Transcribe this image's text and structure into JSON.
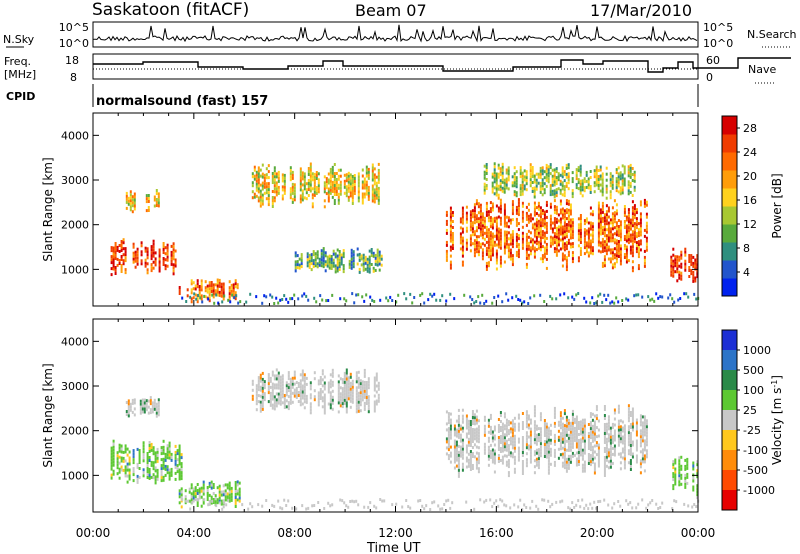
{
  "header": {
    "station": "Saskatoon (fitACF)",
    "beam": "Beam 07",
    "date": "17/Mar/2010"
  },
  "nsky_panel": {
    "left_label": "N.Sky",
    "right_label": "N.Search",
    "yticks": [
      "10^5",
      "10^0"
    ],
    "right_yticks": [
      "10^5",
      "10^0"
    ]
  },
  "freq_panel": {
    "left_label_1": "Freq.",
    "left_label_2": "[MHz]",
    "yticks": [
      "18",
      "8"
    ],
    "right_label": "Nave",
    "right_yticks": [
      "60",
      "0"
    ]
  },
  "cpid": {
    "label": "CPID",
    "value": "normalsound (fast) 157"
  },
  "chart_data": [
    {
      "type": "heatmap",
      "title": "",
      "quantity": "Power",
      "xlabel": "",
      "ylabel": "Slant Range [km]",
      "xlim": [
        0,
        24
      ],
      "ylim": [
        180,
        4500
      ],
      "yticks": [
        "1000",
        "2000",
        "3000",
        "4000"
      ],
      "colorbar": {
        "label": "Power [dB]",
        "ticks": [
          "4",
          "8",
          "12",
          "16",
          "20",
          "24",
          "28"
        ],
        "range": [
          0,
          30
        ],
        "colors": [
          "#0022ee",
          "#2255cc",
          "#2f8f7f",
          "#58aa3c",
          "#a8c832",
          "#ffd21e",
          "#ff9d0a",
          "#ff6a00",
          "#f03c00",
          "#d60000"
        ]
      },
      "regions": [
        {
          "t0": 0.7,
          "t1": 3.3,
          "r0": 900,
          "r1": 1700,
          "level": 8
        },
        {
          "t0": 1.3,
          "t1": 2.6,
          "r0": 2300,
          "r1": 2800,
          "level": 5
        },
        {
          "t0": 3.4,
          "t1": 5.8,
          "r0": 300,
          "r1": 800,
          "level": 7
        },
        {
          "t0": 6.3,
          "t1": 11.3,
          "r0": 2400,
          "r1": 3400,
          "level": 5
        },
        {
          "t0": 8.0,
          "t1": 11.5,
          "r0": 900,
          "r1": 1500,
          "level": 3
        },
        {
          "t0": 14.0,
          "t1": 22.0,
          "r0": 1000,
          "r1": 2600,
          "level": 7
        },
        {
          "t0": 15.5,
          "t1": 21.5,
          "r0": 2600,
          "r1": 3400,
          "level": 4
        },
        {
          "t0": 22.9,
          "t1": 24.0,
          "r0": 700,
          "r1": 1500,
          "level": 8
        }
      ]
    },
    {
      "type": "heatmap",
      "title": "",
      "quantity": "Velocity",
      "xlabel": "Time UT",
      "ylabel": "Slant Range [km]",
      "xlim": [
        0,
        24
      ],
      "ylim": [
        180,
        4500
      ],
      "xticks": [
        "00:00",
        "04:00",
        "08:00",
        "12:00",
        "16:00",
        "20:00",
        "00:00"
      ],
      "yticks": [
        "1000",
        "2000",
        "3000",
        "4000"
      ],
      "colorbar": {
        "label": "Velocity [m s^-1]",
        "ticks": [
          "1000",
          "500",
          "100",
          "25",
          "-25",
          "-100",
          "-500",
          "-1000"
        ],
        "range": [
          -1000,
          1000
        ],
        "colors": [
          "#1c2fd4",
          "#2c74c8",
          "#2a8a48",
          "#5cc832",
          "#c8c8c8",
          "#ffc81e",
          "#ff8c0a",
          "#ff4a00",
          "#e60000"
        ]
      },
      "regions": [
        {
          "t0": 0.7,
          "t1": 3.5,
          "r0": 800,
          "r1": 1800,
          "level": "+100"
        },
        {
          "t0": 1.3,
          "t1": 2.6,
          "r0": 2300,
          "r1": 2800,
          "level": "0"
        },
        {
          "t0": 3.4,
          "t1": 5.8,
          "r0": 300,
          "r1": 900,
          "level": "+100"
        },
        {
          "t0": 6.3,
          "t1": 11.3,
          "r0": 2400,
          "r1": 3400,
          "level": "0"
        },
        {
          "t0": 14.0,
          "t1": 22.0,
          "r0": 1000,
          "r1": 2600,
          "level": "0"
        },
        {
          "t0": 22.9,
          "t1": 24.0,
          "r0": 500,
          "r1": 1500,
          "level": "+100"
        }
      ]
    }
  ]
}
